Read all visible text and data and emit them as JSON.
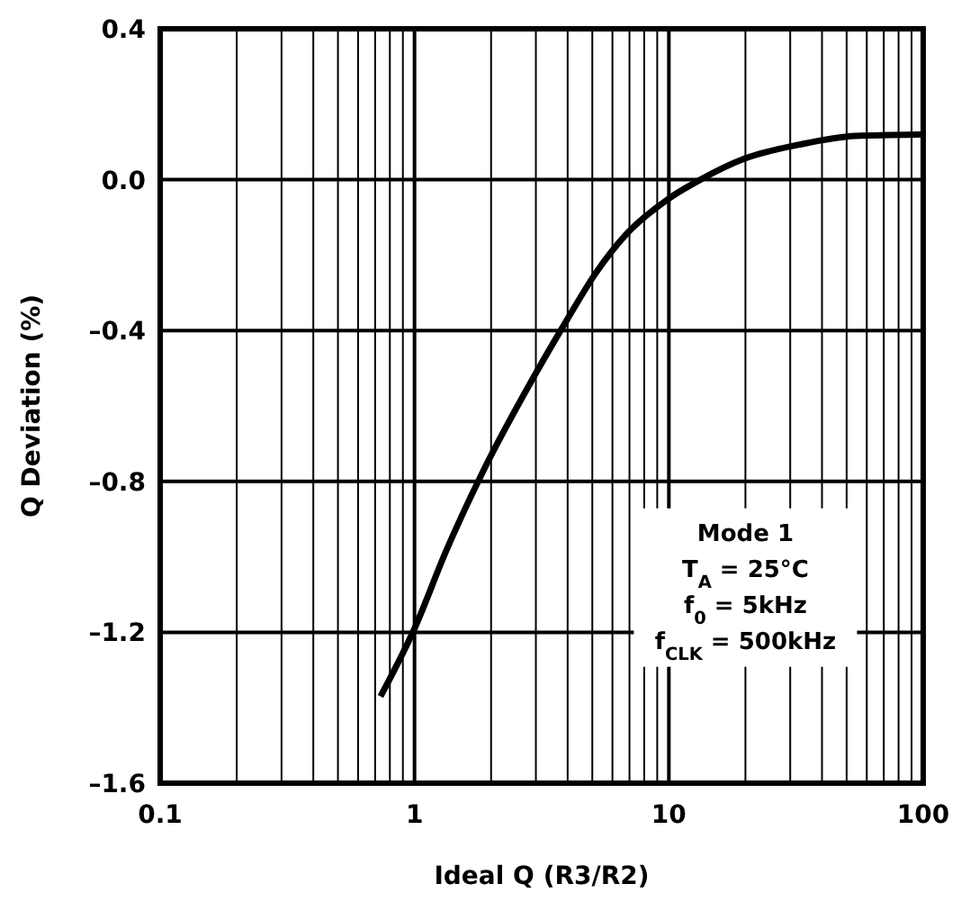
{
  "chart_data": {
    "type": "line",
    "xlabel": "Ideal Q (R3/R2)",
    "ylabel": "Q Deviation (%)",
    "log": "x",
    "xlim": [
      0.1,
      100
    ],
    "xticks": [
      0.1,
      1,
      10,
      100
    ],
    "ylim": [
      -1.6,
      0.4
    ],
    "yticks": [
      {
        "value": -1.6,
        "label": "–1.6"
      },
      {
        "value": -1.2,
        "label": "–1.2"
      },
      {
        "value": -0.8,
        "label": "–0.8"
      },
      {
        "value": -0.4,
        "label": "–0.4"
      },
      {
        "value": 0,
        "label": "0.0"
      },
      {
        "value": 0.4,
        "label": "0.4"
      }
    ],
    "grid": true,
    "marker": "none",
    "line_style": "solid",
    "series": [
      {
        "color": "#000000",
        "x": [
          0.735,
          1,
          1.34,
          1.87,
          2.96,
          3.99,
          5.13,
          6.79,
          10,
          13.3,
          19.7,
          32.6,
          54,
          100
        ],
        "values": [
          -1.37,
          -1.19,
          -0.98,
          -0.77,
          -0.52,
          -0.37,
          -0.25,
          -0.145,
          -0.05,
          0.0,
          0.055,
          0.093,
          0.116,
          0.12
        ]
      }
    ],
    "annotations": [
      "Mode 1",
      "T$_{A}$ = 25°C",
      "f$_{0}$ = 5kHz",
      "f$_{CLK}$ = 500kHz"
    ]
  }
}
